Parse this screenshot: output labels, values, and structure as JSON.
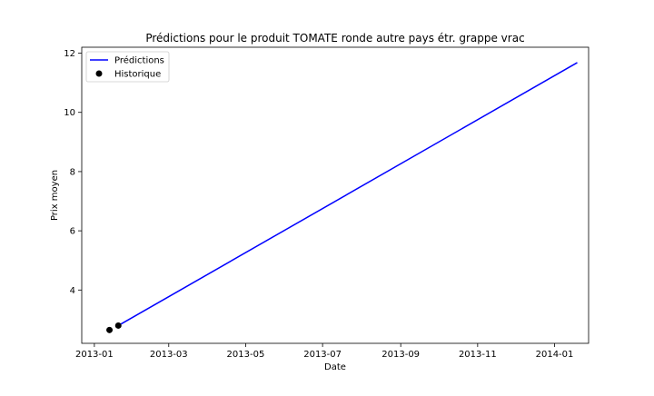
{
  "chart_data": {
    "type": "line",
    "title": "Prédictions pour le produit TOMATE ronde autre pays étr. grappe vrac",
    "xlabel": "Date",
    "ylabel": "Prix moyen",
    "x_axis_kind": "date",
    "xlim": [
      "2012-12-22",
      "2014-01-28"
    ],
    "ylim": [
      2.2,
      12.2
    ],
    "x_tick_labels": [
      "2013-01",
      "2013-03",
      "2013-05",
      "2013-07",
      "2013-09",
      "2013-11",
      "2014-01"
    ],
    "x_ticks": [
      "2013-01-01",
      "2013-03-01",
      "2013-05-01",
      "2013-07-01",
      "2013-09-01",
      "2013-11-01",
      "2014-01-01"
    ],
    "y_ticks": [
      4,
      6,
      8,
      10,
      12
    ],
    "grid": false,
    "legend_position": "top-left",
    "series": [
      {
        "name": "Prédictions",
        "kind": "line",
        "color": "#0000ff",
        "points": [
          {
            "x": "2013-01-20",
            "y": 2.8
          },
          {
            "x": "2014-01-19",
            "y": 11.68
          }
        ]
      },
      {
        "name": "Historique",
        "kind": "scatter",
        "color": "#000000",
        "points": [
          {
            "x": "2013-01-13",
            "y": 2.65
          },
          {
            "x": "2013-01-20",
            "y": 2.8
          }
        ]
      }
    ]
  }
}
